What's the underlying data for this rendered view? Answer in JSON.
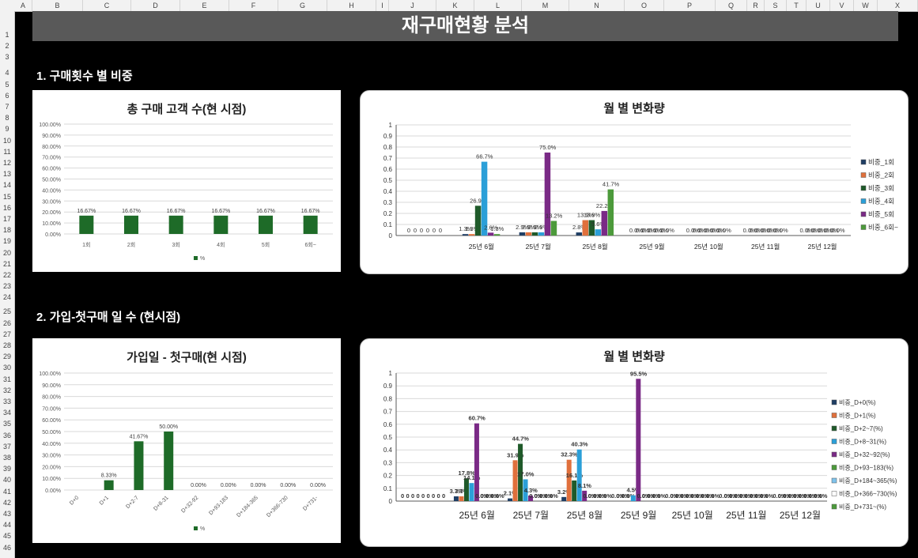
{
  "sheet": {
    "columns": [
      "A",
      "B",
      "C",
      "D",
      "E",
      "F",
      "G",
      "H",
      "I",
      "J",
      "K",
      "L",
      "M",
      "N",
      "O",
      "P",
      "Q",
      "R",
      "S",
      "T",
      "U",
      "V",
      "W",
      "X"
    ],
    "rows": [
      "1",
      "2",
      "3",
      "4",
      "5",
      "6",
      "7",
      "8",
      "9",
      "10",
      "11",
      "12",
      "13",
      "14",
      "15",
      "16",
      "17",
      "18",
      "19",
      "20",
      "21",
      "22",
      "23",
      "24",
      "25",
      "26",
      "27",
      "28",
      "29",
      "30",
      "31",
      "32",
      "33",
      "34",
      "35",
      "36",
      "37",
      "38",
      "39",
      "40",
      "41",
      "42",
      "43",
      "44",
      "45",
      "46"
    ]
  },
  "banner": {
    "title": "재구매현황 분석"
  },
  "sections": [
    {
      "label": "1. 구매횟수 별 비중"
    },
    {
      "label": "2. 가입-첫구매 일 수 (현시점)"
    }
  ],
  "colors": {
    "green_bar": "#1e6b28",
    "s_navy": "#1f3e64",
    "s_orange": "#e0703c",
    "s_green": "#1f5a2a",
    "s_blue": "#2b9fd8",
    "s_purple": "#7a2a86",
    "s_lightgreen": "#4c9a3b",
    "s_lightblue": "#7fc3ec",
    "s_white": "#ffffff"
  },
  "chart_data": [
    {
      "type": "bar",
      "title": "총 구매 고객 수(현 시점)",
      "categories": [
        "1회",
        "2회",
        "3회",
        "4회",
        "5회",
        "6회~"
      ],
      "series": [
        {
          "name": "%",
          "values": [
            16.67,
            16.67,
            16.67,
            16.67,
            16.67,
            16.67
          ]
        }
      ],
      "data_labels": [
        "16.67%",
        "16.67%",
        "16.67%",
        "16.67%",
        "16.67%",
        "16.67%"
      ],
      "y_ticks": [
        "0.00%",
        "10.00%",
        "20.00%",
        "30.00%",
        "40.00%",
        "50.00%",
        "60.00%",
        "70.00%",
        "80.00%",
        "90.00%",
        "100.00%"
      ],
      "ylim": [
        0,
        100
      ],
      "grid": true,
      "legend": "bottom"
    },
    {
      "type": "bar",
      "title": "월 별 변화량",
      "categories": [
        "",
        "25년 6월",
        "25년 7월",
        "25년 8월",
        "25년 9월",
        "25년 10월",
        "25년 11월",
        "25년 12월"
      ],
      "series": [
        {
          "name": "비중_1회",
          "values": [
            0,
            0.013,
            0.029,
            0.028,
            0,
            0,
            0,
            0
          ],
          "labels": [
            "0",
            "1.3%",
            "2.9%",
            "2.8%",
            "0.0%",
            "0.0%",
            "0.0%",
            "0.0%"
          ]
        },
        {
          "name": "비중_2회",
          "values": [
            0,
            0.013,
            0.029,
            0.139,
            0,
            0,
            0,
            0
          ],
          "labels": [
            "0",
            "1.3%",
            "2.9%",
            "13.9%",
            "0.0%",
            "0.0%",
            "0.0%",
            "0.0%"
          ]
        },
        {
          "name": "비중_3회",
          "values": [
            0,
            0.269,
            0.029,
            0.139,
            0,
            0,
            0,
            0
          ],
          "labels": [
            "0",
            "26.9%",
            "2.9%",
            "13.9%",
            "0.0%",
            "0.0%",
            "0.0%",
            "0.0%"
          ]
        },
        {
          "name": "비중_4회",
          "values": [
            0,
            0.667,
            0.029,
            0.056,
            0,
            0,
            0,
            0
          ],
          "labels": [
            "0",
            "66.7%",
            "2.9%",
            "5.6%",
            "0.0%",
            "0.0%",
            "0.0%",
            "0.0%"
          ]
        },
        {
          "name": "비중_5회",
          "values": [
            0,
            0.026,
            0.75,
            0.222,
            0,
            0,
            0,
            0
          ],
          "labels": [
            "0",
            "2.6%",
            "75.0%",
            "22.2%",
            "0.0%",
            "0.0%",
            "0.0%",
            "0.0%"
          ]
        },
        {
          "name": "비중_6회~",
          "values": [
            0,
            0.013,
            0.132,
            0.417,
            0,
            0,
            0,
            0
          ],
          "labels": [
            "0",
            "1.3%",
            "13.2%",
            "41.7%",
            "0.0%",
            "0.0%",
            "0.0%",
            "0.0%"
          ]
        }
      ],
      "y_ticks": [
        "0",
        "0.1",
        "0.2",
        "0.3",
        "0.4",
        "0.5",
        "0.6",
        "0.7",
        "0.8",
        "0.9",
        "1"
      ],
      "ylim": [
        0,
        1
      ],
      "grid": true,
      "legend": "right"
    },
    {
      "type": "bar",
      "title": "가입일 - 첫구매(현 시점)",
      "categories": [
        "D+0",
        "D+1",
        "D+2-7",
        "D+8-31",
        "D+32-92",
        "D+93-183",
        "D+184-365",
        "D+366-730",
        "D+731-"
      ],
      "series": [
        {
          "name": "%",
          "values": [
            0,
            8.33,
            41.67,
            50.0,
            0,
            0,
            0,
            0,
            0
          ]
        }
      ],
      "data_labels": [
        "",
        "8.33%",
        "41.67%",
        "50.00%",
        "0.00%",
        "0.00%",
        "0.00%",
        "0.00%",
        "0.00%"
      ],
      "y_ticks": [
        "0.00%",
        "10.00%",
        "20.00%",
        "30.00%",
        "40.00%",
        "50.00%",
        "60.00%",
        "70.00%",
        "80.00%",
        "90.00%",
        "100.00%"
      ],
      "ylim": [
        0,
        100
      ],
      "grid": true,
      "legend": "bottom"
    },
    {
      "type": "bar",
      "title": "월 별 변화량",
      "categories": [
        "",
        "25년 6월",
        "25년 7월",
        "25년 8월",
        "25년 9월",
        "25년 10월",
        "25년 11월",
        "25년 12월"
      ],
      "series": [
        {
          "name": "비중_D+0(%)",
          "values": [
            0,
            0.037,
            0.021,
            0.032,
            0,
            0,
            0,
            0
          ],
          "labels": [
            "0",
            "3.7%",
            "2.1%",
            "3.2%",
            "0.0%",
            "0.0%",
            "0.0%",
            "0.0%"
          ]
        },
        {
          "name": "비중_D+1(%)",
          "values": [
            0,
            0.037,
            0.319,
            0.323,
            0,
            0,
            0,
            0
          ],
          "labels": [
            "0",
            "3.7%",
            "31.9%",
            "32.3%",
            "0.0%",
            "0.0%",
            "0.0%",
            "0.0%"
          ]
        },
        {
          "name": "비중_D+2~7(%)",
          "values": [
            0,
            0.178,
            0.447,
            0.161,
            0,
            0,
            0,
            0
          ],
          "labels": [
            "0",
            "17.8%",
            "44.7%",
            "16.1%",
            "0.0%",
            "0.0%",
            "0.0%",
            "0.0%"
          ]
        },
        {
          "name": "비중_D+8~31(%)",
          "values": [
            0,
            0.141,
            0.17,
            0.403,
            0.045,
            0,
            0,
            0
          ],
          "labels": [
            "0",
            "14.1%",
            "17.0%",
            "40.3%",
            "4.5%",
            "0.0%",
            "0.0%",
            "0.0%"
          ]
        },
        {
          "name": "비중_D+32~92(%)",
          "values": [
            0,
            0.607,
            0.043,
            0.081,
            0.955,
            0,
            0,
            0
          ],
          "labels": [
            "0",
            "60.7%",
            "4.3%",
            "8.1%",
            "95.5%",
            "0.0%",
            "0.0%",
            "0.0%"
          ]
        },
        {
          "name": "비중_D+93~183(%)",
          "values": [
            0,
            0,
            0,
            0,
            0,
            0,
            0,
            0
          ],
          "labels": [
            "0",
            "0.0%",
            "0.0%",
            "0.0%",
            "0.0%",
            "0.0%",
            "0.0%",
            "0.0%"
          ]
        },
        {
          "name": "비중_D+184~365(%)",
          "values": [
            0,
            0,
            0,
            0,
            0,
            0,
            0,
            0
          ],
          "labels": [
            "0",
            "0.0%",
            "0.0%",
            "0.0%",
            "0.0%",
            "0.0%",
            "0.0%",
            "0.0%"
          ]
        },
        {
          "name": "비중_D+366~730(%)",
          "values": [
            0,
            0,
            0,
            0,
            0,
            0,
            0,
            0
          ],
          "labels": [
            "0",
            "0.0%",
            "0.0%",
            "0.0%",
            "0.0%",
            "0.0%",
            "0.0%",
            "0.0%"
          ]
        },
        {
          "name": "비중_D+731~(%)",
          "values": [
            0,
            0,
            0,
            0,
            0,
            0,
            0,
            0
          ],
          "labels": [
            "0",
            "0.0%",
            "0.0%",
            "0.0%",
            "0.0%",
            "0.0%",
            "0.0%",
            "0.0%"
          ]
        }
      ],
      "y_ticks": [
        "0",
        "0.1",
        "0.2",
        "0.3",
        "0.4",
        "0.5",
        "0.6",
        "0.7",
        "0.8",
        "0.9",
        "1"
      ],
      "ylim": [
        0,
        1
      ],
      "grid": true,
      "legend": "right"
    }
  ]
}
